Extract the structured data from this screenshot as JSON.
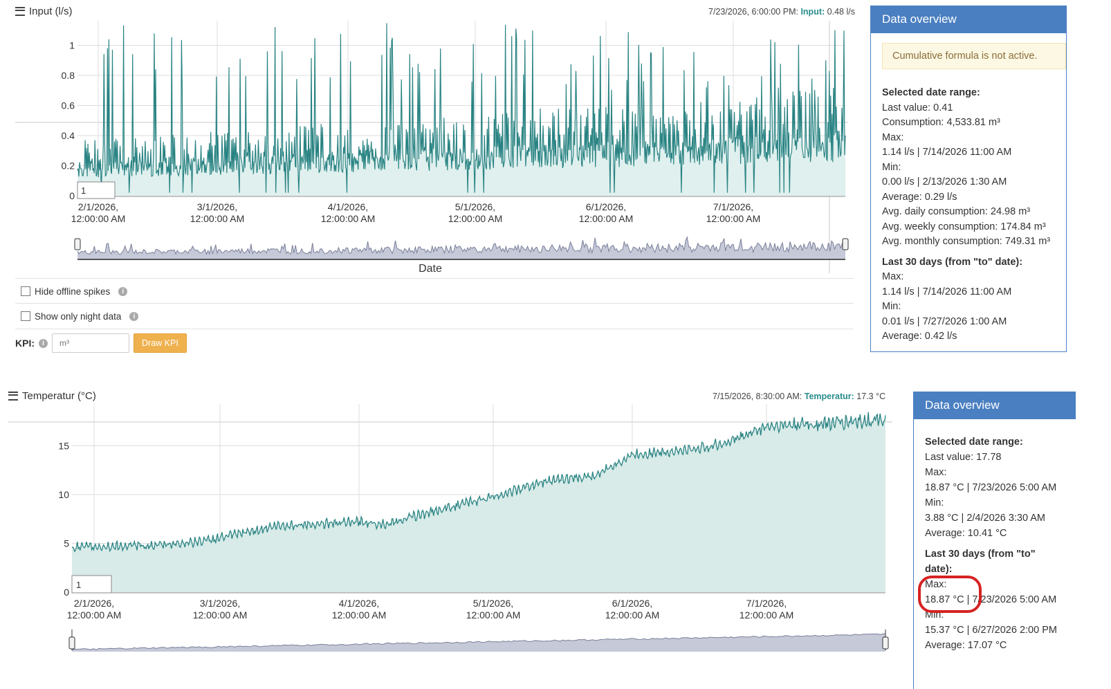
{
  "chart1": {
    "title": "Input (l/s)",
    "tooltip": {
      "time": "7/23/2026, 6:00:00 PM:",
      "series": "Input:",
      "value": "0.48 l/s"
    },
    "y_ticks": [
      "0",
      "0.2",
      "0.4",
      "0.6",
      "0.8",
      "1"
    ],
    "x_ticks": [
      "2/1/2026,|12:00:00 AM",
      "3/1/2026,|12:00:00 AM",
      "4/1/2026,|12:00:00 AM",
      "5/1/2026,|12:00:00 AM",
      "6/1/2026,|12:00:00 AM",
      "7/1/2026,|12:00:00 AM"
    ],
    "zoom_box": "1",
    "x_axis_label": "Date",
    "line_color": "#2a8383",
    "fill_color": "#dff0ee"
  },
  "chart2": {
    "title": "Temperatur (°C)",
    "tooltip": {
      "time": "7/15/2026, 8:30:00 AM:",
      "series": "Temperatur:",
      "value": "17.3 °C"
    },
    "y_ticks": [
      "0",
      "5",
      "10",
      "15"
    ],
    "x_ticks": [
      "2/1/2026,|12:00:00 AM",
      "3/1/2026,|12:00:00 AM",
      "4/1/2026,|12:00:00 AM",
      "5/1/2026,|12:00:00 AM",
      "6/1/2026,|12:00:00 AM",
      "7/1/2026,|12:00:00 AM"
    ],
    "zoom_box": "1"
  },
  "options": {
    "hide_spikes": "Hide offline spikes",
    "night_data": "Show only night data",
    "kpi_label": "KPI:",
    "kpi_placeholder": "m³",
    "draw_kpi": "Draw KPI",
    "info_glyph": "i"
  },
  "panel1": {
    "title": "Data overview",
    "notice": "Cumulative formula is not active.",
    "lines": [
      {
        "t": "Selected date range:",
        "h": true
      },
      {
        "t": "Last value: 0.41"
      },
      {
        "t": "Consumption: 4,533.81 m³"
      },
      {
        "t": "Max:"
      },
      {
        "t": "1.14 l/s | 7/14/2026 11:00 AM"
      },
      {
        "t": "Min:"
      },
      {
        "t": "0.00 l/s | 2/13/2026 1:30 AM"
      },
      {
        "t": "Average: 0.29 l/s"
      },
      {
        "t": "Avg. daily consumption:  24.98 m³"
      },
      {
        "t": "Avg. weekly consumption:  174.84 m³"
      },
      {
        "t": "Avg. monthly consumption:  749.31 m³"
      },
      {
        "t": "Last 30 days (from \"to\" date):",
        "h": true
      },
      {
        "t": "Max:"
      },
      {
        "t": "1.14 l/s | 7/14/2026 11:00 AM"
      },
      {
        "t": "Min:"
      },
      {
        "t": "0.01 l/s | 7/27/2026 1:00 AM"
      },
      {
        "t": "Average: 0.42 l/s"
      }
    ]
  },
  "panel2": {
    "title": "Data overview",
    "lines": [
      {
        "t": "Selected date range:",
        "h": true
      },
      {
        "t": "Last value: 17.78"
      },
      {
        "t": "Max:"
      },
      {
        "t": "18.87 °C | 7/23/2026 5:00 AM"
      },
      {
        "t": "Min:"
      },
      {
        "t": "3.88 °C | 2/4/2026 3:30 AM"
      },
      {
        "t": "Average: 10.41 °C"
      },
      {
        "t": "Last 30 days (from \"to\" date):",
        "h": true
      },
      {
        "t": "Max:"
      },
      {
        "t": "18.87 °C | 7/23/2026 5:00 AM"
      },
      {
        "t": "Min:"
      },
      {
        "t": "15.37 °C | 6/27/2026 2:00 PM"
      },
      {
        "t": "Average: 17.07 °C"
      }
    ]
  }
}
